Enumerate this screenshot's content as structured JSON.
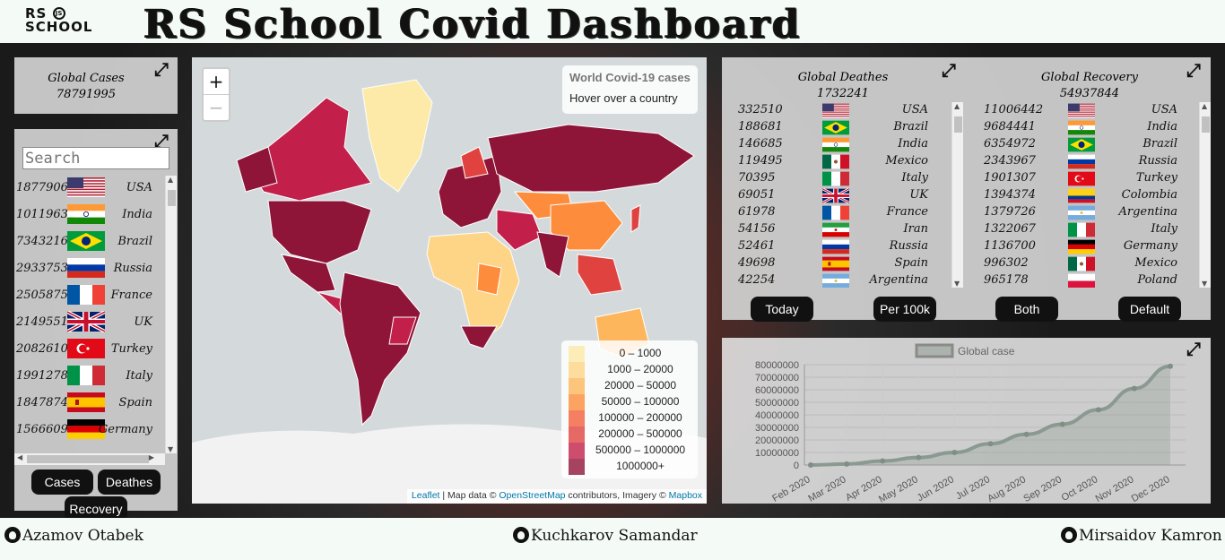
{
  "header": {
    "logo_line1": "RS",
    "logo_line2": "SCHOOL",
    "logo_js": "JS",
    "title": "RS School Covid Dashboard"
  },
  "global_cases": {
    "label": "Global Cases",
    "value": "78791995"
  },
  "search": {
    "placeholder": "Search"
  },
  "cases_list": [
    {
      "value": "18779066",
      "country": "USA"
    },
    {
      "value": "10119631",
      "country": "India"
    },
    {
      "value": "7343216",
      "country": "Brazil"
    },
    {
      "value": "2933753",
      "country": "Russia"
    },
    {
      "value": "2505875",
      "country": "France"
    },
    {
      "value": "2149551",
      "country": "UK"
    },
    {
      "value": "2082610",
      "country": "Turkey"
    },
    {
      "value": "1991278",
      "country": "Italy"
    },
    {
      "value": "1847874",
      "country": "Spain"
    },
    {
      "value": "1566609",
      "country": "Germany"
    }
  ],
  "left_buttons": {
    "cases": "Cases",
    "deathes": "Deathes",
    "recovery": "Recovery"
  },
  "map": {
    "zoom_in": "+",
    "zoom_out": "−",
    "info_title": "World Covid-19 cases",
    "info_hint": "Hover over a country",
    "legend": [
      "0 – 1000",
      "1000 – 20000",
      "20000 – 50000",
      "50000 – 100000",
      "100000 – 200000",
      "200000 – 500000",
      "500000 – 1000000",
      "1000000+"
    ],
    "legend_colors": [
      "#fdeaa8",
      "#fed486",
      "#feb65c",
      "#fd8d3c",
      "#f4603c",
      "#e0433f",
      "#c2204a",
      "#8e1438"
    ],
    "attrib_leaflet": "Leaflet",
    "attrib_mid": " | Map data © ",
    "attrib_osm": "OpenStreetMap",
    "attrib_mid2": " contributors, Imagery © ",
    "attrib_mapbox": "Mapbox"
  },
  "deaths": {
    "label": "Global Deathes",
    "value": "1732241",
    "rows": [
      {
        "value": "332510",
        "country": "USA"
      },
      {
        "value": "188681",
        "country": "Brazil"
      },
      {
        "value": "146685",
        "country": "India"
      },
      {
        "value": "119495",
        "country": "Mexico"
      },
      {
        "value": "70395",
        "country": "Italy"
      },
      {
        "value": "69051",
        "country": "UK"
      },
      {
        "value": "61978",
        "country": "France"
      },
      {
        "value": "54156",
        "country": "Iran"
      },
      {
        "value": "52461",
        "country": "Russia"
      },
      {
        "value": "49698",
        "country": "Spain"
      },
      {
        "value": "42254",
        "country": "Argentina"
      }
    ]
  },
  "recovery": {
    "label": "Global Recovery",
    "value": "54937844",
    "rows": [
      {
        "value": "11006442",
        "country": "USA"
      },
      {
        "value": "9684441",
        "country": "India"
      },
      {
        "value": "6354972",
        "country": "Brazil"
      },
      {
        "value": "2343967",
        "country": "Russia"
      },
      {
        "value": "1901307",
        "country": "Turkey"
      },
      {
        "value": "1394374",
        "country": "Colombia"
      },
      {
        "value": "1379726",
        "country": "Argentina"
      },
      {
        "value": "1322067",
        "country": "Italy"
      },
      {
        "value": "1136700",
        "country": "Germany"
      },
      {
        "value": "996302",
        "country": "Mexico"
      },
      {
        "value": "965178",
        "country": "Poland"
      }
    ]
  },
  "right_buttons": {
    "today": "Today",
    "per100k": "Per 100k",
    "both": "Both",
    "default": "Default"
  },
  "flags": {
    "USA": "us",
    "India": "in",
    "Brazil": "br",
    "Russia": "ru",
    "France": "fr",
    "UK": "gb",
    "Turkey": "tr",
    "Italy": "it",
    "Spain": "es",
    "Germany": "de",
    "Mexico": "mx",
    "Iran": "ir",
    "Argentina": "ar",
    "Colombia": "co",
    "Poland": "pl"
  },
  "chart_data": {
    "type": "line",
    "legend": "Global case",
    "x": [
      "Feb 2020",
      "Mar 2020",
      "Apr 2020",
      "May 2020",
      "Jun 2020",
      "Jul 2020",
      "Aug 2020",
      "Sep 2020",
      "Oct 2020",
      "Nov 2020",
      "Dec 2020"
    ],
    "values": [
      0,
      800000,
      3200000,
      6000000,
      10000000,
      17000000,
      24500000,
      32500000,
      44000000,
      61000000,
      78791995
    ],
    "yticks": [
      "80000000",
      "70000000",
      "60000000",
      "50000000",
      "40000000",
      "30000000",
      "20000000",
      "10000000",
      "0"
    ],
    "ylim": [
      0,
      80000000
    ]
  },
  "footer": {
    "a1": "Azamov Otabek",
    "a2": "Kuchkarov Samandar",
    "a3": "Mirsaidov Kamron"
  }
}
